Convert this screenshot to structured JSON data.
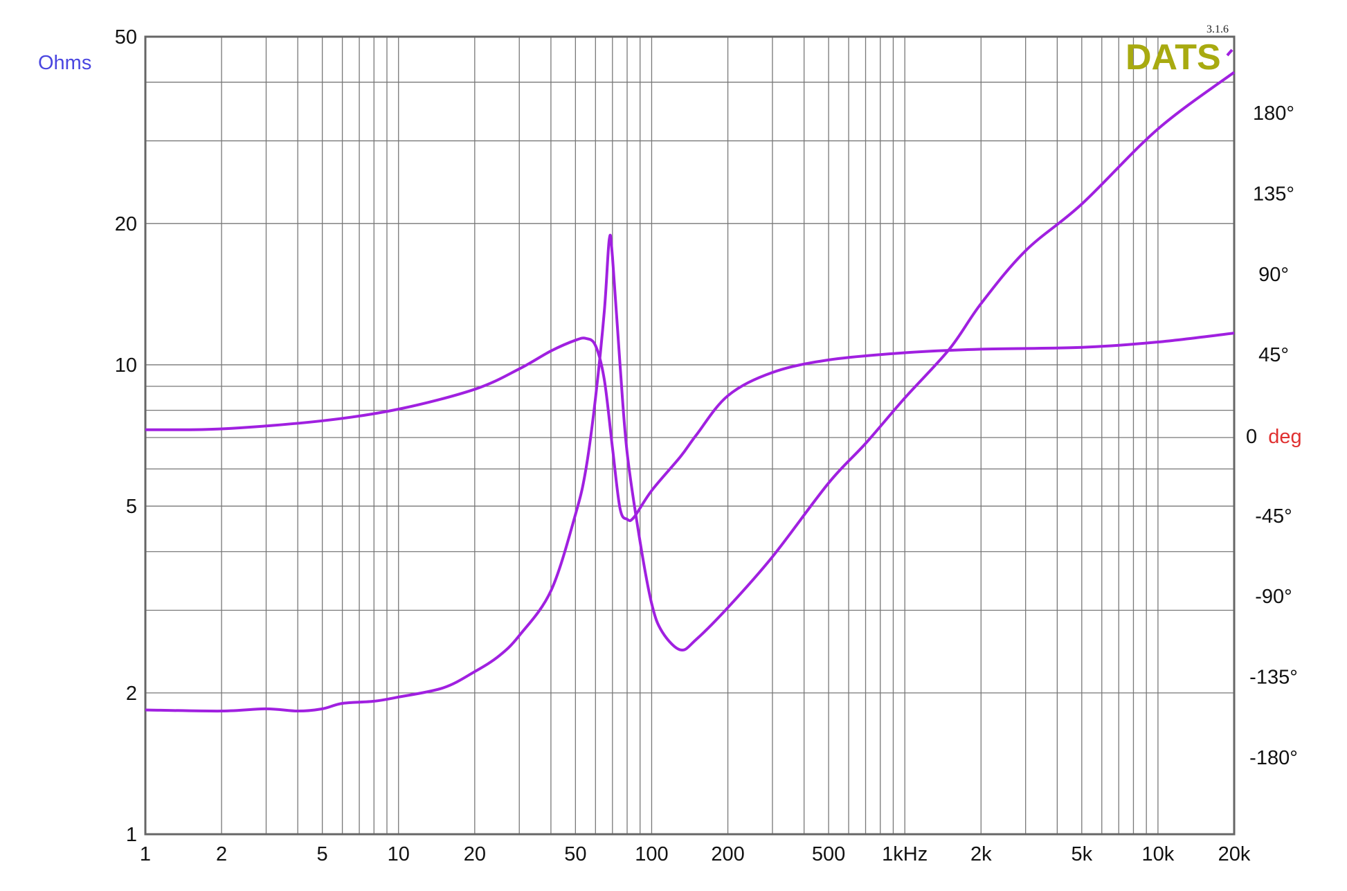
{
  "chart_data": {
    "type": "line",
    "version": "3.1.6",
    "logo": "DATS",
    "ylabel_left": "Ohms",
    "ylabel_right": {
      "value": "0",
      "unit": "deg"
    },
    "x_scale": "log",
    "xlim": [
      1,
      20000
    ],
    "y_left_scale": "log",
    "y_left_lim": [
      1,
      50
    ],
    "y_right_lim": [
      -180,
      180
    ],
    "grid": true,
    "x_ticks": [
      {
        "value": 1,
        "label": "1"
      },
      {
        "value": 2,
        "label": "2"
      },
      {
        "value": 5,
        "label": "5"
      },
      {
        "value": 10,
        "label": "10"
      },
      {
        "value": 20,
        "label": "20"
      },
      {
        "value": 50,
        "label": "50"
      },
      {
        "value": 100,
        "label": "100"
      },
      {
        "value": 200,
        "label": "200"
      },
      {
        "value": 500,
        "label": "500"
      },
      {
        "value": 1000,
        "label": "1kHz"
      },
      {
        "value": 2000,
        "label": "2k"
      },
      {
        "value": 5000,
        "label": "5k"
      },
      {
        "value": 10000,
        "label": "10k"
      },
      {
        "value": 20000,
        "label": "20k"
      }
    ],
    "y_left_ticks": [
      {
        "value": 50,
        "label": "50"
      },
      {
        "value": 20,
        "label": "20"
      },
      {
        "value": 10,
        "label": "10"
      },
      {
        "value": 5,
        "label": "5"
      },
      {
        "value": 2,
        "label": "2"
      },
      {
        "value": 1,
        "label": "1"
      }
    ],
    "y_right_ticks": [
      {
        "value": 180,
        "label": "180°"
      },
      {
        "value": 135,
        "label": "135°"
      },
      {
        "value": 90,
        "label": "90°"
      },
      {
        "value": 45,
        "label": "45°"
      },
      {
        "value": -45,
        "label": "-45°"
      },
      {
        "value": -90,
        "label": "-90°"
      },
      {
        "value": -135,
        "label": "-135°"
      },
      {
        "value": -180,
        "label": "-180°"
      }
    ],
    "series": [
      {
        "axis": "left",
        "color": "#a020e0",
        "x": [
          1,
          2,
          3,
          4,
          5,
          6,
          8,
          10,
          15,
          20,
          25,
          30,
          40,
          50,
          55,
          60,
          65,
          68,
          70,
          75,
          80,
          90,
          100,
          110,
          130,
          150,
          200,
          300,
          500,
          700,
          1000,
          1500,
          2000,
          3000,
          5000,
          10000,
          20000
        ],
        "y": [
          1.84,
          1.83,
          1.85,
          1.83,
          1.85,
          1.9,
          1.92,
          1.96,
          2.05,
          2.22,
          2.4,
          2.65,
          3.3,
          4.8,
          6,
          8.5,
          13,
          18.5,
          17,
          10,
          6.5,
          4.2,
          3.1,
          2.7,
          2.47,
          2.6,
          3.04,
          3.9,
          5.6,
          6.8,
          8.5,
          10.8,
          13.5,
          17.5,
          22,
          31.8,
          42
        ]
      },
      {
        "axis": "right",
        "color": "#a020e0",
        "x": [
          1,
          2,
          5,
          10,
          20,
          30,
          40,
          50,
          55,
          60,
          65,
          70,
          75,
          80,
          85,
          100,
          130,
          150,
          200,
          300,
          500,
          1000,
          2000,
          5000,
          10000,
          20000
        ],
        "y": [
          3,
          3.5,
          8,
          14.5,
          25.6,
          37,
          47,
          53,
          54,
          50,
          31,
          -7,
          -41,
          -47,
          -46,
          -31,
          -12,
          0,
          22,
          35,
          42,
          46,
          48,
          49,
          52,
          57
        ]
      }
    ]
  }
}
